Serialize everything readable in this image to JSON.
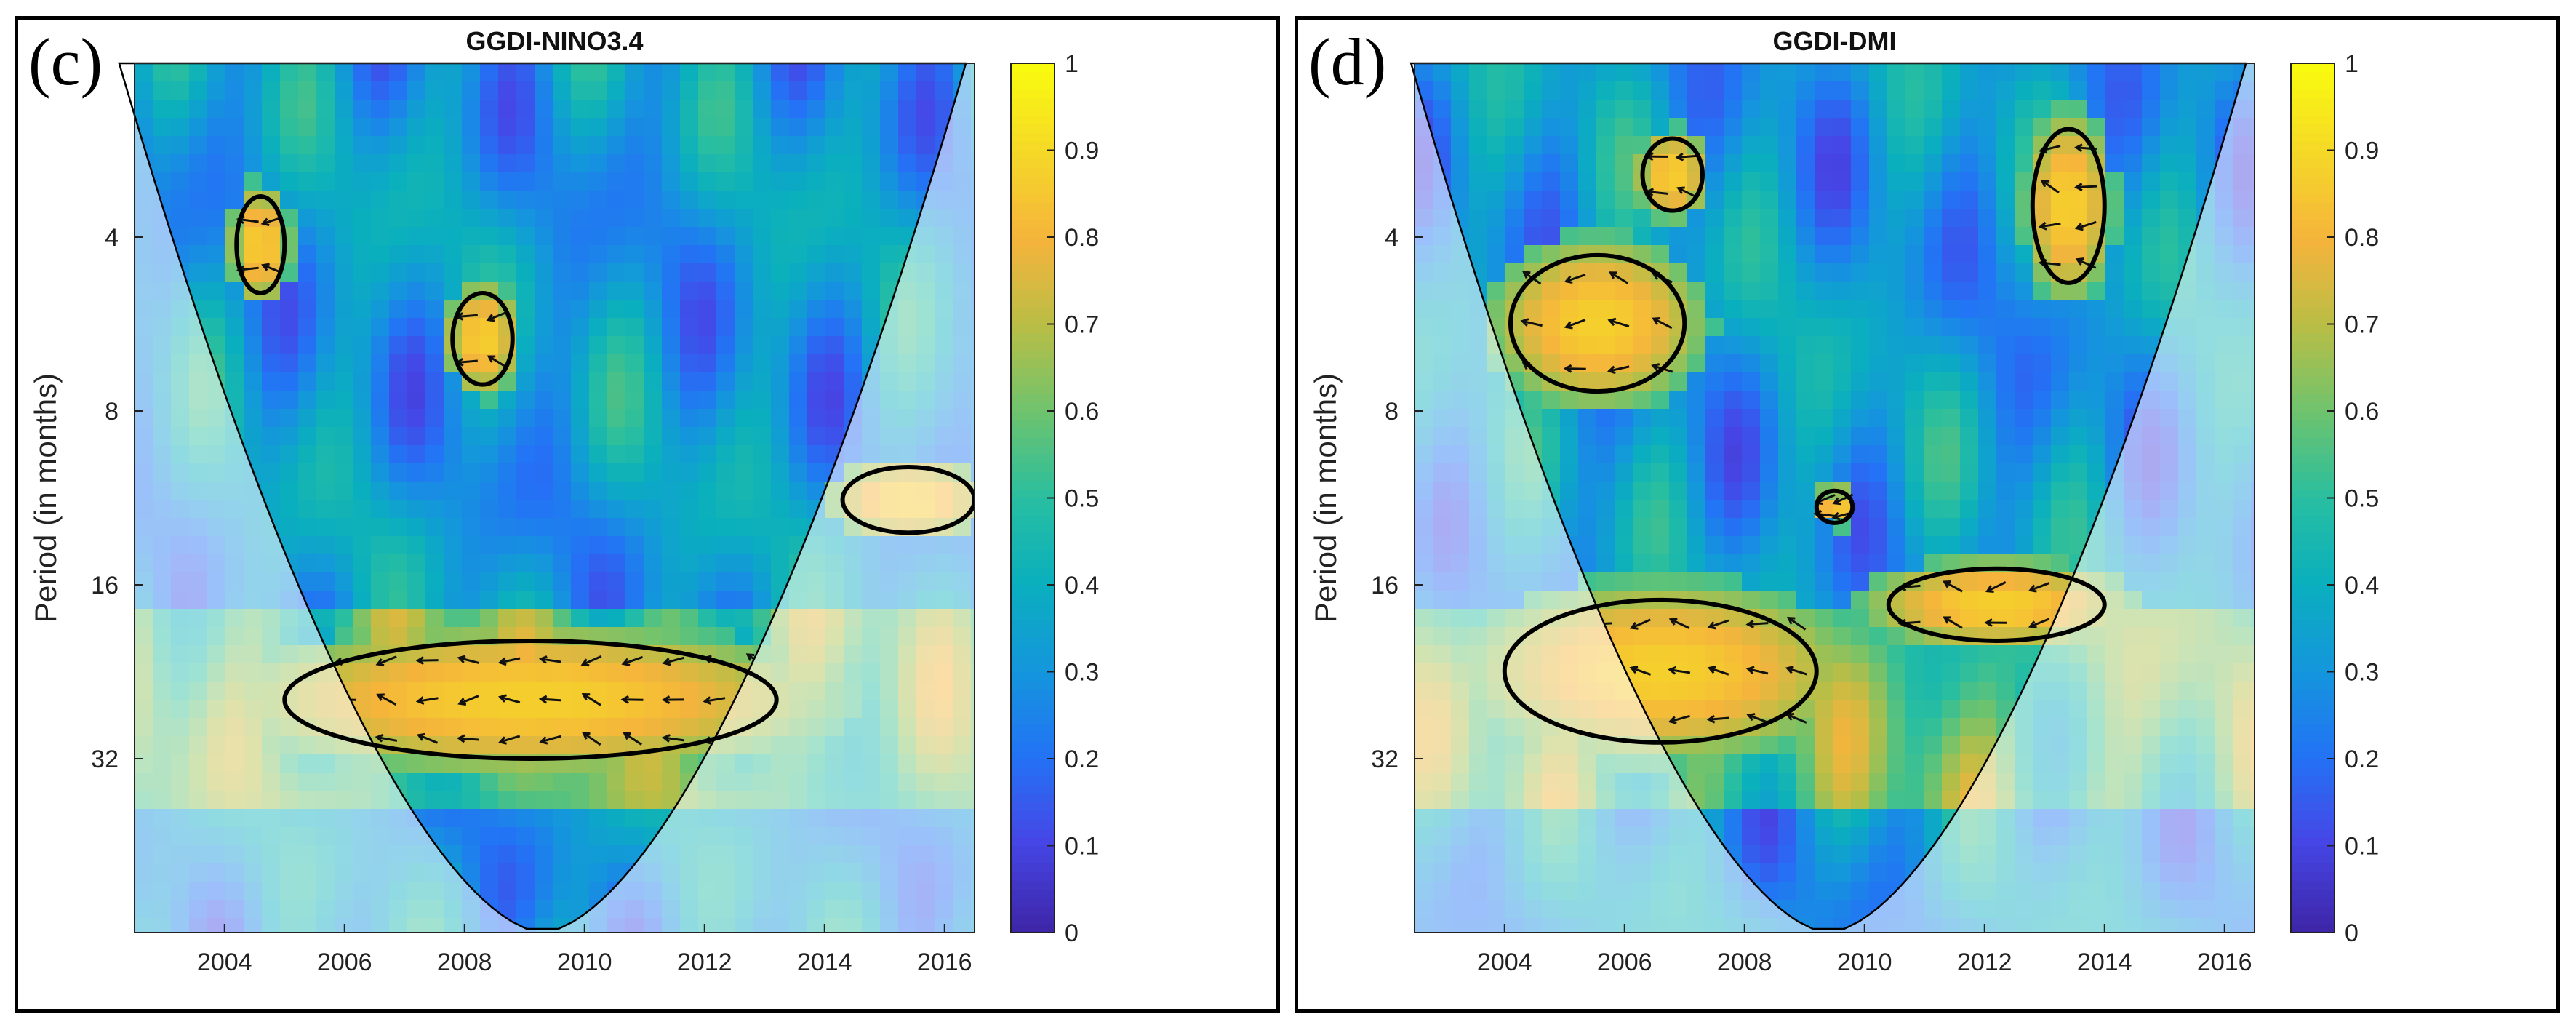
{
  "chart_data": [
    {
      "type": "heatmap",
      "panel_label": "(c)",
      "title": "GGDI-NINO3.4",
      "ylabel": "Period (in months)",
      "xlabel": "",
      "x_ticks": [
        "2004",
        "2006",
        "2008",
        "2010",
        "2012",
        "2014",
        "2016"
      ],
      "x_tick_values": [
        2004,
        2006,
        2008,
        2010,
        2012,
        2014,
        2016
      ],
      "xlim": [
        2002.5,
        2016.5
      ],
      "y_ticks": [
        "4",
        "8",
        "16",
        "32"
      ],
      "y_tick_values": [
        4,
        8,
        16,
        32
      ],
      "ylim": [
        2,
        64
      ],
      "y_scale": "log2",
      "y_reversed": true,
      "colorbar": {
        "min": 0,
        "max": 1,
        "ticks": [
          "0",
          "0.1",
          "0.2",
          "0.3",
          "0.4",
          "0.5",
          "0.6",
          "0.7",
          "0.8",
          "0.9",
          "1"
        ],
        "colormap": "parula"
      },
      "cone_of_influence_apex_x": 2009.3,
      "high_coherence_regions": [
        {
          "x": [
            2005,
            2013.2
          ],
          "period": [
            20,
            32
          ]
        },
        {
          "x": [
            2004.2,
            2005
          ],
          "period": [
            3.4,
            5
          ]
        },
        {
          "x": [
            2007.8,
            2008.8
          ],
          "period": [
            5,
            7.2
          ]
        },
        {
          "x": [
            2014.3,
            2016.5
          ],
          "period": [
            10,
            13
          ]
        }
      ]
    },
    {
      "type": "heatmap",
      "panel_label": "(d)",
      "title": "GGDI-DMI",
      "ylabel": "Period (in months)",
      "xlabel": "",
      "x_ticks": [
        "2004",
        "2006",
        "2008",
        "2010",
        "2012",
        "2014",
        "2016"
      ],
      "x_tick_values": [
        2004,
        2006,
        2008,
        2010,
        2012,
        2014,
        2016
      ],
      "xlim": [
        2002.5,
        2016.5
      ],
      "y_ticks": [
        "4",
        "8",
        "16",
        "32"
      ],
      "y_tick_values": [
        4,
        8,
        16,
        32
      ],
      "ylim": [
        2,
        64
      ],
      "y_scale": "log2",
      "y_reversed": true,
      "colorbar": {
        "min": 0,
        "max": 1,
        "ticks": [
          "0",
          "0.1",
          "0.2",
          "0.3",
          "0.4",
          "0.5",
          "0.6",
          "0.7",
          "0.8",
          "0.9",
          "1"
        ],
        "colormap": "parula"
      },
      "cone_of_influence_apex_x": 2009.4,
      "high_coherence_regions": [
        {
          "x": [
            2004,
            2009.2
          ],
          "period": [
            17,
            30
          ]
        },
        {
          "x": [
            2010.4,
            2014
          ],
          "period": [
            15,
            20
          ]
        },
        {
          "x": [
            2004.1,
            2007
          ],
          "period": [
            4.3,
            7.4
          ]
        },
        {
          "x": [
            2012.8,
            2014
          ],
          "period": [
            2.6,
            4.8
          ]
        },
        {
          "x": [
            2006.3,
            2007.3
          ],
          "period": [
            2.7,
            3.6
          ]
        },
        {
          "x": [
            2009.2,
            2009.8
          ],
          "period": [
            11,
            12.5
          ]
        }
      ]
    }
  ]
}
